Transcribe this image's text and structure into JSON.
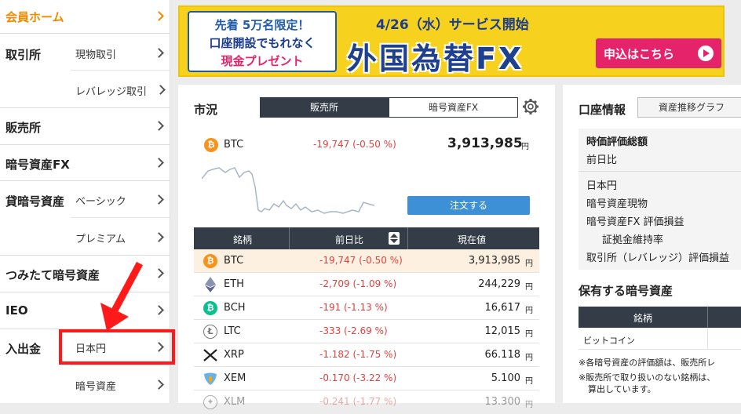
{
  "sidebar": {
    "member_home": "会員ホーム",
    "exchange": "取引所",
    "exchange_spot": "現物取引",
    "exchange_leverage": "レバレッジ取引",
    "sales": "販売所",
    "crypto_fx": "暗号資産FX",
    "lending": "貸暗号資産",
    "lending_basic": "ベーシック",
    "lending_premium": "プレミアム",
    "tsumitate": "つみたて暗号資産",
    "ieo": "IEO",
    "deposit_withdraw": "入出金",
    "deposit_jpy": "日本円",
    "deposit_crypto": "暗号資産"
  },
  "banner": {
    "line1": "先着 5万名限定！",
    "line2": "口座開設でもれなく",
    "line3": "現金プレゼント",
    "date": "4/26（水）サービス開始",
    "headline": "外国為替FX",
    "apply": "申込はこちら"
  },
  "market": {
    "title": "市況",
    "tab_sales": "販売所",
    "tab_crypto_fx": "暗号資産FX",
    "featured": {
      "symbol": "BTC",
      "change": "-19,747 (-0.50 %)",
      "price": "3,913,985",
      "unit": "円"
    },
    "order_button": "注文する",
    "table_headers": {
      "symbol": "銘柄",
      "change": "前日比",
      "price": "現在値"
    },
    "rows": [
      {
        "symbol": "BTC",
        "change": "-19,747 (-0.50 %)",
        "price": "3,913,985",
        "unit": "円"
      },
      {
        "symbol": "ETH",
        "change": "-2,709 (-1.09 %)",
        "price": "244,229",
        "unit": "円"
      },
      {
        "symbol": "BCH",
        "change": "-191 (-1.13 %)",
        "price": "16,617",
        "unit": "円"
      },
      {
        "symbol": "LTC",
        "change": "-333 (-2.69 %)",
        "price": "12,015",
        "unit": "円"
      },
      {
        "symbol": "XRP",
        "change": "-1.182 (-1.75 %)",
        "price": "66.118",
        "unit": "円"
      },
      {
        "symbol": "XEM",
        "change": "-0.170 (-3.22 %)",
        "price": "5.100",
        "unit": "円"
      },
      {
        "symbol": "XLM",
        "change": "-0.241 (-1.77 %)",
        "price": "13.300",
        "unit": "円"
      }
    ]
  },
  "account": {
    "title": "口座情報",
    "asset_graph_button": "資産推移グラフ",
    "valuation_total": "時価評価総額",
    "prev_day": "前日比",
    "jpy": "日本円",
    "crypto_spot": "暗号資産現物",
    "crypto_fx_pl": "暗号資産FX 評価損益",
    "margin_ratio": "証拠金維持率",
    "exchange_leverage_pl": "取引所（レバレッジ）評価損益",
    "holdings_title": "保有する暗号資産",
    "holdings_header": "銘柄",
    "holdings_row": "ビットコイン",
    "note1": "※各暗号資産の評価額は、販売所レ",
    "note2": "※販売所で取り扱いのない銘柄は、",
    "note3": "算出しています。"
  },
  "colors": {
    "accent_orange": "#f08a00",
    "negative_red": "#e0413d",
    "header_dark": "#333c47",
    "order_blue": "#3d8fd6",
    "highlight_red": "#ff1a1a"
  }
}
